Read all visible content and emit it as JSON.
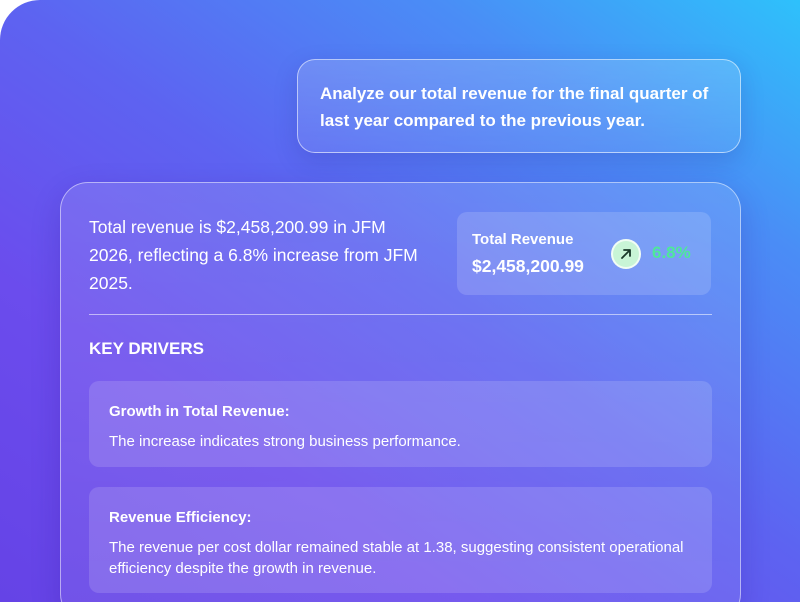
{
  "prompt": {
    "text": "Analyze our total revenue  for the final quarter of last year compared to the previous year."
  },
  "answer": {
    "summary": "Total revenue is $2,458,200.99 in JFM 2026, reflecting a 6.8% increase from JFM 2025.",
    "metric": {
      "label": "Total Revenue",
      "value": "$2,458,200.99",
      "change": "6.8%",
      "trend_icon": "arrow-up-right-icon",
      "change_color": "#4ee89a"
    },
    "key_drivers": {
      "heading": "KEY DRIVERS",
      "items": [
        {
          "title": "Growth in Total Revenue:",
          "description": "The increase  indicates strong business performance."
        },
        {
          "title": "Revenue Efficiency:",
          "description": "The revenue per cost dollar remained stable at 1.38, suggesting consistent operational efficiency despite the growth in revenue."
        }
      ]
    }
  },
  "colors": {
    "gradient_top_right": "#2ec1fb",
    "gradient_bottom_left": "#6543e6",
    "text": "#ffffff",
    "positive": "#4ee89a"
  }
}
